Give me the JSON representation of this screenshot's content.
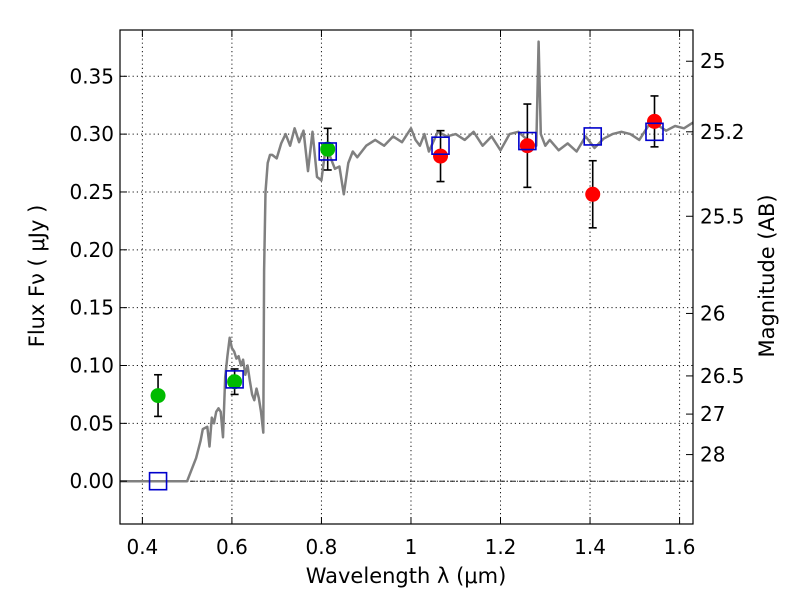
{
  "chart_data": {
    "type": "scatter",
    "xlabel": "Wavelength  λ (μm)",
    "ylabel": "Flux  Fν  ( μJy )",
    "ylabel_right": "Magnitude (AB)",
    "xlim": [
      0.35,
      1.63
    ],
    "ylim": [
      -0.037,
      0.39
    ],
    "grid": true,
    "x_ticks": [
      0.4,
      0.6,
      0.8,
      1.0,
      1.2,
      1.4,
      1.6
    ],
    "x_tick_labels": [
      "0.4",
      "0.6",
      "0.8",
      "1",
      "1.2",
      "1.4",
      "1.6"
    ],
    "y_ticks": [
      0.0,
      0.05,
      0.1,
      0.15,
      0.2,
      0.25,
      0.3,
      0.35
    ],
    "y_tick_labels": [
      "0.00",
      "0.05",
      "0.10",
      "0.15",
      "0.20",
      "0.25",
      "0.30",
      "0.35"
    ],
    "right_ticks": [
      {
        "label": "25",
        "flux": 0.363
      },
      {
        "label": "25.2",
        "flux": 0.302
      },
      {
        "label": "25.5",
        "flux": 0.229
      },
      {
        "label": "26",
        "flux": 0.145
      },
      {
        "label": "26.5",
        "flux": 0.091
      },
      {
        "label": "27",
        "flux": 0.058
      },
      {
        "label": "28",
        "flux": 0.023
      }
    ],
    "zero_line": 0.0,
    "series": [
      {
        "style": "line",
        "color": "#808080",
        "x": [
          0.35,
          0.5,
          0.52,
          0.53,
          0.535,
          0.545,
          0.55,
          0.555,
          0.56,
          0.565,
          0.57,
          0.575,
          0.58,
          0.585,
          0.59,
          0.595,
          0.6,
          0.605,
          0.61,
          0.615,
          0.62,
          0.625,
          0.63,
          0.635,
          0.64,
          0.645,
          0.65,
          0.655,
          0.66,
          0.665,
          0.67,
          0.672,
          0.675,
          0.68,
          0.685,
          0.69,
          0.7,
          0.71,
          0.72,
          0.73,
          0.74,
          0.75,
          0.76,
          0.77,
          0.78,
          0.79,
          0.8,
          0.81,
          0.82,
          0.83,
          0.84,
          0.85,
          0.86,
          0.87,
          0.88,
          0.9,
          0.92,
          0.94,
          0.96,
          0.98,
          1.0,
          1.01,
          1.02,
          1.03,
          1.04,
          1.06,
          1.08,
          1.1,
          1.12,
          1.14,
          1.16,
          1.18,
          1.2,
          1.22,
          1.24,
          1.26,
          1.27,
          1.28,
          1.285,
          1.29,
          1.3,
          1.31,
          1.33,
          1.35,
          1.37,
          1.39,
          1.41,
          1.43,
          1.45,
          1.47,
          1.49,
          1.51,
          1.53,
          1.55,
          1.57,
          1.59,
          1.61,
          1.63
        ],
        "values": [
          0.0,
          0.0,
          0.02,
          0.035,
          0.045,
          0.047,
          0.03,
          0.055,
          0.05,
          0.06,
          0.063,
          0.06,
          0.038,
          0.09,
          0.108,
          0.124,
          0.115,
          0.112,
          0.106,
          0.108,
          0.1,
          0.105,
          0.092,
          0.1,
          0.087,
          0.075,
          0.07,
          0.08,
          0.072,
          0.06,
          0.042,
          0.182,
          0.25,
          0.275,
          0.282,
          0.282,
          0.279,
          0.292,
          0.3,
          0.29,
          0.305,
          0.293,
          0.303,
          0.268,
          0.302,
          0.263,
          0.26,
          0.29,
          0.28,
          0.27,
          0.272,
          0.248,
          0.275,
          0.285,
          0.28,
          0.29,
          0.295,
          0.29,
          0.298,
          0.293,
          0.305,
          0.295,
          0.29,
          0.3,
          0.285,
          0.302,
          0.298,
          0.3,
          0.295,
          0.302,
          0.29,
          0.298,
          0.286,
          0.3,
          0.302,
          0.295,
          0.292,
          0.29,
          0.38,
          0.3,
          0.29,
          0.295,
          0.286,
          0.292,
          0.285,
          0.298,
          0.288,
          0.296,
          0.3,
          0.302,
          0.3,
          0.295,
          0.307,
          0.308,
          0.303,
          0.307,
          0.305,
          0.31
        ]
      },
      {
        "style": "markers-errorbars",
        "marker": "circle",
        "color": "#00bb00",
        "x": [
          0.435,
          0.606,
          0.814
        ],
        "values": [
          0.074,
          0.086,
          0.287
        ],
        "err": [
          0.018,
          0.011,
          0.018
        ]
      },
      {
        "style": "markers-errorbars",
        "marker": "circle",
        "color": "#ff0000",
        "x": [
          1.066,
          1.26,
          1.406,
          1.544
        ],
        "values": [
          0.281,
          0.29,
          0.248,
          0.311
        ],
        "err": [
          0.022,
          0.036,
          0.029,
          0.022
        ]
      },
      {
        "style": "markers",
        "marker": "open-square",
        "color": "#0000cc",
        "x": [
          0.435,
          0.606,
          0.814,
          1.066,
          1.26,
          1.406,
          1.544
        ],
        "values": [
          0.0,
          0.088,
          0.285,
          0.29,
          0.294,
          0.298,
          0.302
        ]
      }
    ]
  }
}
